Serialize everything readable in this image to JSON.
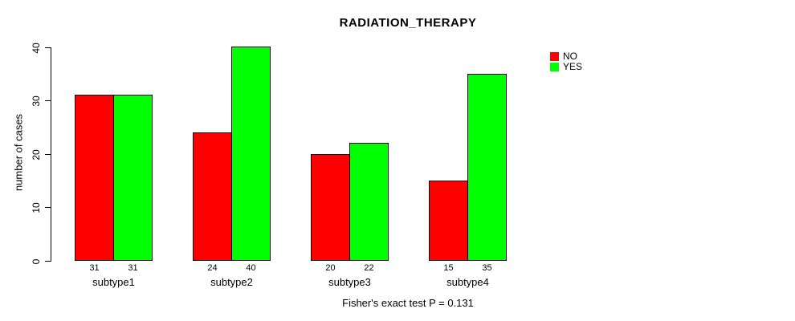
{
  "title": "RADIATION_THERAPY",
  "y_axis": {
    "label": "number of cases",
    "ticks": [
      0,
      10,
      20,
      30,
      40
    ]
  },
  "footer": {
    "note": "Fisher's exact test P = 0.131"
  },
  "legend": {
    "items": [
      {
        "label": "NO",
        "color": "#FF0000"
      },
      {
        "label": "YES",
        "color": "#00FF00"
      }
    ]
  },
  "chart_data": {
    "type": "bar",
    "title": "RADIATION_THERAPY",
    "categories": [
      "subtype1",
      "subtype2",
      "subtype3",
      "subtype4"
    ],
    "series": [
      {
        "name": "NO",
        "color": "#FF0000",
        "values": [
          31,
          24,
          20,
          15
        ]
      },
      {
        "name": "YES",
        "color": "#00FF00",
        "values": [
          31,
          40,
          22,
          35
        ]
      }
    ],
    "show_values_under_bars": true,
    "xlabel": "",
    "ylabel": "number of cases",
    "ylim": [
      0,
      40
    ],
    "yticks": [
      0,
      10,
      20,
      30,
      40
    ],
    "grid": false,
    "legend_position": "top-right",
    "annotation": "Fisher's exact test P = 0.131",
    "colors": {
      "bar_border": "#000000",
      "axis": "#000000",
      "background": "#FFFFFF"
    }
  }
}
